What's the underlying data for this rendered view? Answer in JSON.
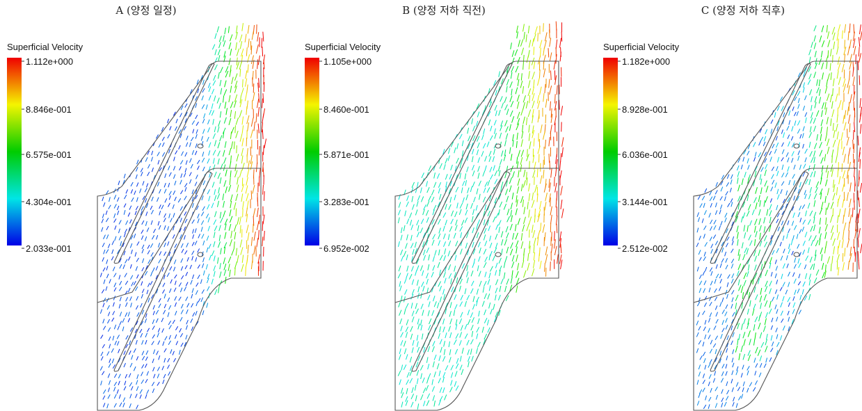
{
  "panels": [
    {
      "title": "A (양정 일정)",
      "legend": {
        "title": "Superficial Velocity",
        "labels": [
          "1.112e+000",
          "8.846e-001",
          "6.575e-001",
          "4.304e-001",
          "2.033e-001"
        ]
      }
    },
    {
      "title": "B (양정 저하 직전)",
      "legend": {
        "title": "Superficial Velocity",
        "labels": [
          "1.105e+000",
          "8.460e-001",
          "5.871e-001",
          "3.283e-001",
          "6.952e-002"
        ]
      }
    },
    {
      "title": "C (양정 저하 직후)",
      "legend": {
        "title": "Superficial Velocity",
        "labels": [
          "1.182e+000",
          "8.928e-001",
          "6.036e-001",
          "3.144e-001",
          "2.512e-002"
        ]
      }
    }
  ]
}
